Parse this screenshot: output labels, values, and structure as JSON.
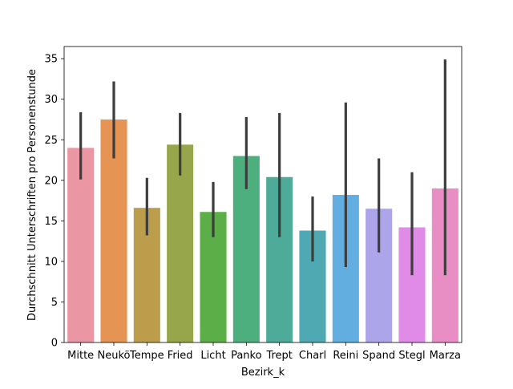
{
  "chart_data": {
    "type": "bar",
    "xlabel": "Bezirk_k",
    "ylabel": "Durchschnitt Unterschriften pro Personenstunde",
    "ylim": [
      0,
      36.5
    ],
    "yticks": [
      0,
      5,
      10,
      15,
      20,
      25,
      30,
      35
    ],
    "grid": false,
    "categories": [
      "Mitte",
      "Neukö",
      "Tempe",
      "Fried",
      "Licht",
      "Panko",
      "Trept",
      "Charl",
      "Reini",
      "Spand",
      "Stegl",
      "Marza"
    ],
    "values": [
      24.0,
      27.5,
      16.6,
      24.4,
      16.1,
      23.0,
      20.4,
      13.8,
      18.2,
      16.5,
      14.2,
      19.0
    ],
    "ci_low": [
      20.1,
      22.7,
      13.2,
      20.6,
      13.0,
      18.9,
      13.0,
      10.0,
      9.3,
      11.1,
      8.3,
      8.3
    ],
    "ci_high": [
      28.4,
      32.2,
      20.3,
      28.3,
      19.8,
      27.8,
      28.3,
      18.0,
      29.6,
      22.7,
      21.0,
      34.9
    ],
    "colors": [
      "#ea96a3",
      "#e59453",
      "#bb9d4b",
      "#97a64a",
      "#5bae48",
      "#4caf7d",
      "#4eab9a",
      "#4ea9b3",
      "#63aee1",
      "#ada5ea",
      "#e08be8",
      "#e98dc5"
    ]
  }
}
